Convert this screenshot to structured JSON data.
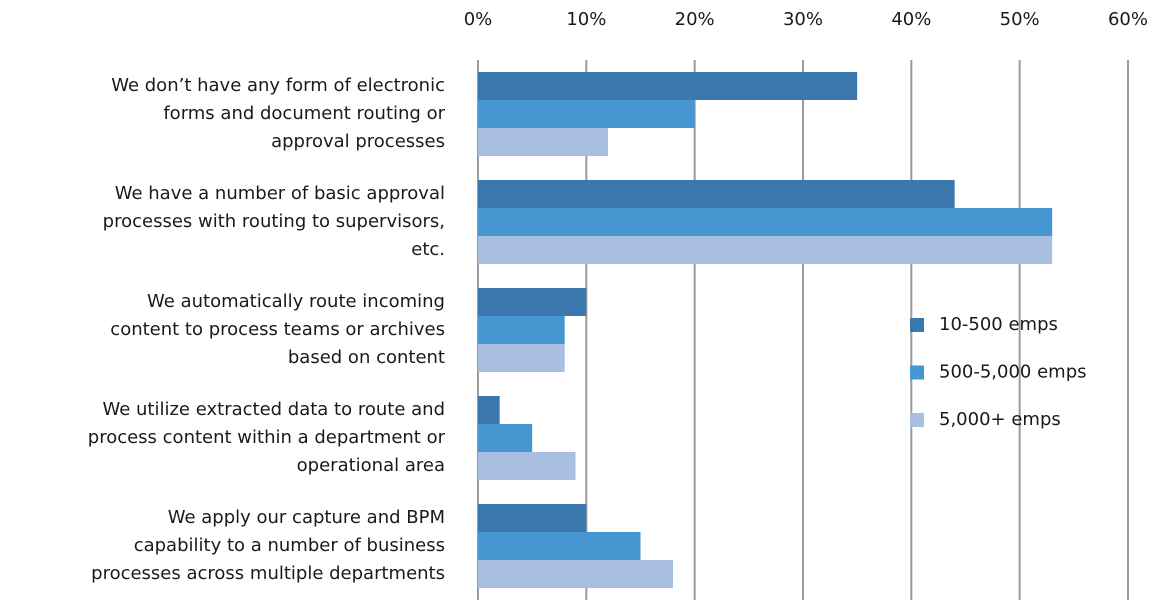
{
  "chart_data": {
    "type": "hbar",
    "categories": [
      [
        "We don’t have any form of electronic",
        "forms and document routing or",
        "approval processes"
      ],
      [
        "We have a number of basic approval",
        "processes with routing to supervisors,",
        "etc."
      ],
      [
        "We automatically  route incoming",
        "content to process teams  or archives",
        "based on content"
      ],
      [
        "We utilize extracted data to route and",
        "process content within a department or",
        "operational area"
      ],
      [
        "We apply our capture and BPM",
        "capability to a number of business",
        "processes across multiple  departments"
      ]
    ],
    "series": [
      {
        "name": "10-500 emps",
        "color": "#3a78ad",
        "values": [
          35,
          44,
          10,
          2,
          10
        ]
      },
      {
        "name": "500-5,000 emps",
        "color": "#4596d1",
        "values": [
          20,
          53,
          8,
          5,
          15
        ]
      },
      {
        "name": "5,000+ emps",
        "color": "#a8bfe0",
        "values": [
          12,
          53,
          8,
          9,
          18
        ]
      }
    ],
    "xlim": [
      0,
      60
    ],
    "xticks": [
      {
        "value": 0,
        "label": "0%"
      },
      {
        "value": 10,
        "label": "10%"
      },
      {
        "value": 20,
        "label": "20%"
      },
      {
        "value": 30,
        "label": "30%"
      },
      {
        "value": 40,
        "label": "40%"
      },
      {
        "value": 50,
        "label": "50%"
      },
      {
        "value": 60,
        "label": "60%"
      }
    ],
    "grid": true,
    "legend": "right"
  }
}
